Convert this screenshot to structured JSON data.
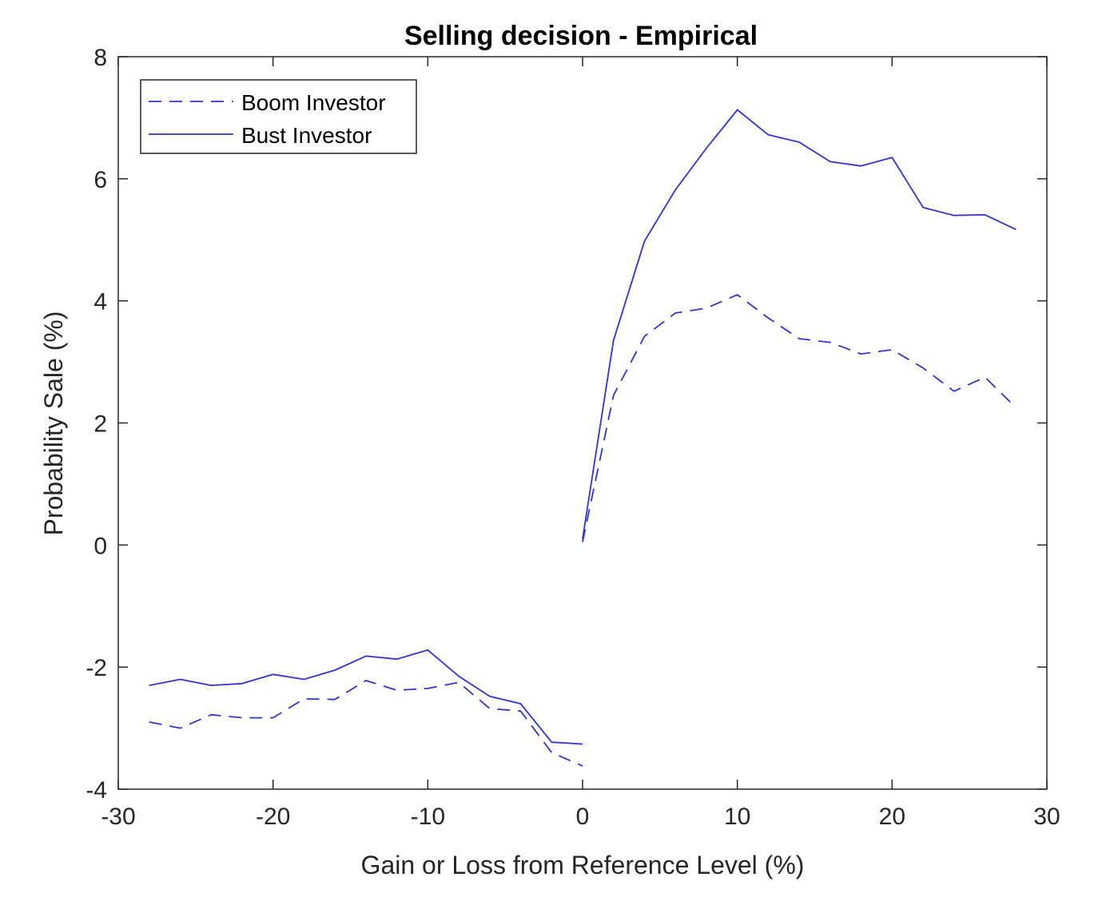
{
  "chart_data": {
    "type": "line",
    "title": "Selling decision - Empirical",
    "xlabel": "Gain or Loss from Reference Level (%)",
    "ylabel": "Probability Sale (%)",
    "xlim": [
      -30,
      30
    ],
    "ylim": [
      -4,
      8
    ],
    "xticks": [
      -30,
      -20,
      -10,
      0,
      10,
      20,
      30
    ],
    "yticks": [
      -4,
      -2,
      0,
      2,
      4,
      6,
      8
    ],
    "grid": false,
    "legend_position": "top-left",
    "line_color": "#3333cc",
    "series": [
      {
        "name": "Boom Investor",
        "style": "dashed",
        "segments": [
          {
            "x": [
              -28,
              -26,
              -24,
              -22,
              -20,
              -18,
              -16,
              -14,
              -12,
              -10,
              -8,
              -6,
              -4,
              -2,
              0
            ],
            "y": [
              -2.9,
              -3.0,
              -2.78,
              -2.83,
              -2.83,
              -2.52,
              -2.53,
              -2.22,
              -2.38,
              -2.35,
              -2.25,
              -2.68,
              -2.72,
              -3.4,
              -3.62
            ]
          },
          {
            "x": [
              0,
              2,
              4,
              6,
              8,
              10,
              12,
              14,
              16,
              18,
              20,
              22,
              24,
              26,
              28
            ],
            "y": [
              0.05,
              2.45,
              3.42,
              3.8,
              3.88,
              4.1,
              3.72,
              3.38,
              3.32,
              3.13,
              3.2,
              2.9,
              2.52,
              2.75,
              2.25
            ]
          }
        ]
      },
      {
        "name": "Bust Investor",
        "style": "solid",
        "segments": [
          {
            "x": [
              -28,
              -26,
              -24,
              -22,
              -20,
              -18,
              -16,
              -14,
              -12,
              -10,
              -8,
              -6,
              -4,
              -2,
              0
            ],
            "y": [
              -2.3,
              -2.2,
              -2.3,
              -2.27,
              -2.12,
              -2.2,
              -2.05,
              -1.82,
              -1.87,
              -1.72,
              -2.15,
              -2.48,
              -2.6,
              -3.23,
              -3.26
            ]
          },
          {
            "x": [
              0,
              2,
              4,
              6,
              8,
              10,
              12,
              14,
              16,
              18,
              20,
              22,
              24,
              26,
              28
            ],
            "y": [
              0.1,
              3.35,
              4.98,
              5.82,
              6.5,
              7.13,
              6.72,
              6.6,
              6.28,
              6.21,
              6.35,
              5.53,
              5.4,
              5.41,
              5.17
            ]
          }
        ]
      }
    ]
  }
}
